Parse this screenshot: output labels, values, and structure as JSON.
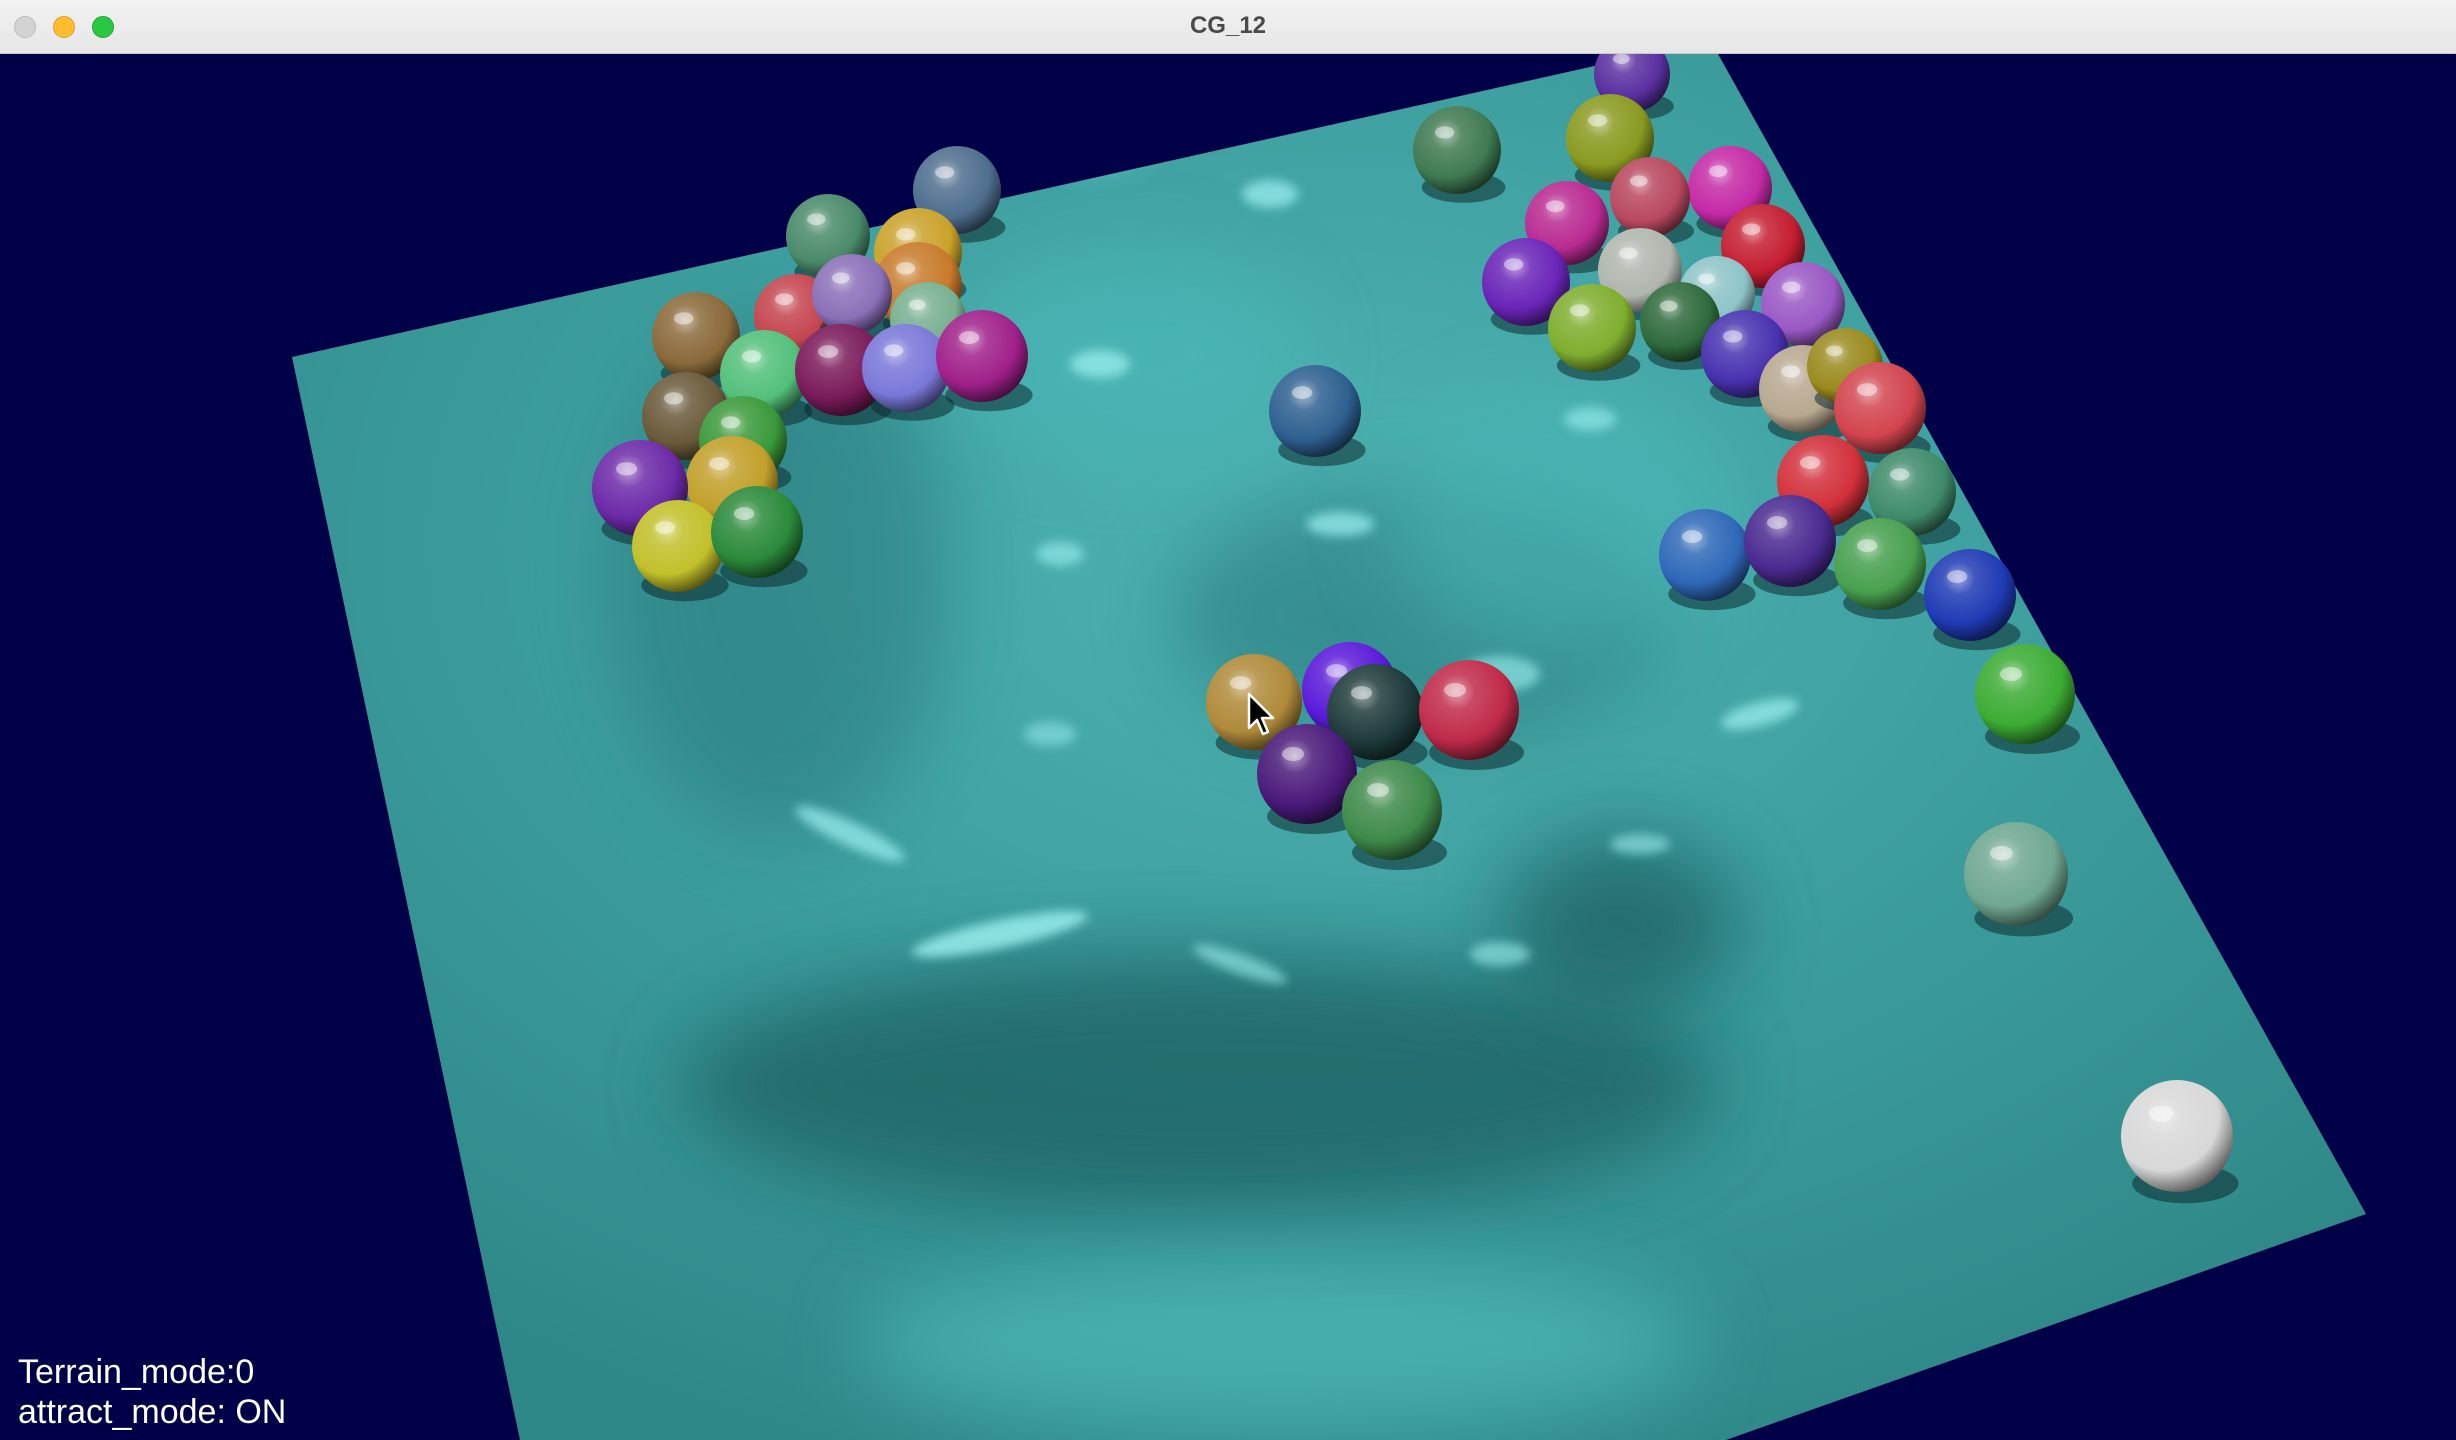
{
  "window": {
    "title": "CG_12",
    "buttons": [
      "close",
      "minimize",
      "zoom"
    ]
  },
  "scene": {
    "background_color": "#000048",
    "terrain_color": "#3d9e9e",
    "balls": [
      {
        "color": "#5a2fa0"
      },
      {
        "color": "#3f7a52"
      },
      {
        "color": "#8a9a20"
      },
      {
        "color": "#c42aa6"
      },
      {
        "color": "#b92a92"
      },
      {
        "color": "#b8485f"
      },
      {
        "color": "#c41e30"
      },
      {
        "color": "#6a24b8"
      },
      {
        "color": "#b0b6ae"
      },
      {
        "color": "#8ec4c8"
      },
      {
        "color": "#9a58c4"
      },
      {
        "color": "#7fae2e"
      },
      {
        "color": "#2f6a3c"
      },
      {
        "color": "#4832b0"
      },
      {
        "color": "#b8a890"
      },
      {
        "color": "#9a8a1e"
      },
      {
        "color": "#d2444e"
      },
      {
        "color": "#d2303a"
      },
      {
        "color": "#3e8a6a"
      },
      {
        "color": "#2e68b8"
      },
      {
        "color": "#4a2a90"
      },
      {
        "color": "#48a04e"
      },
      {
        "color": "#1f3ab4"
      },
      {
        "color": "#3cac34"
      },
      {
        "color": "#70a890"
      },
      {
        "color": "#d8d8d8"
      },
      {
        "color": "#2e6090"
      },
      {
        "color": "#4e6e8e"
      },
      {
        "color": "#4a8a6a"
      },
      {
        "color": "#caa22a"
      },
      {
        "color": "#8a6a3a"
      },
      {
        "color": "#c87a2a"
      },
      {
        "color": "#c4444e"
      },
      {
        "color": "#8a70b8"
      },
      {
        "color": "#78b090"
      },
      {
        "color": "#52c07a"
      },
      {
        "color": "#7a1a5a"
      },
      {
        "color": "#7a78d8"
      },
      {
        "color": "#a0208a"
      },
      {
        "color": "#6a5a3a"
      },
      {
        "color": "#3a9a3a"
      },
      {
        "color": "#c2a02a"
      },
      {
        "color": "#6c2aa8"
      },
      {
        "color": "#c2c02a"
      },
      {
        "color": "#2a8a3a"
      },
      {
        "color": "#b08a3a"
      },
      {
        "color": "#5a1ad8"
      },
      {
        "color": "#1e3a3a"
      },
      {
        "color": "#c02a4a"
      },
      {
        "color": "#4a1a7a"
      },
      {
        "color": "#3e8a4a"
      }
    ]
  },
  "hud": {
    "terrain_mode": "Terrain_mode:0",
    "attract_mode": "attract_mode: ON"
  }
}
